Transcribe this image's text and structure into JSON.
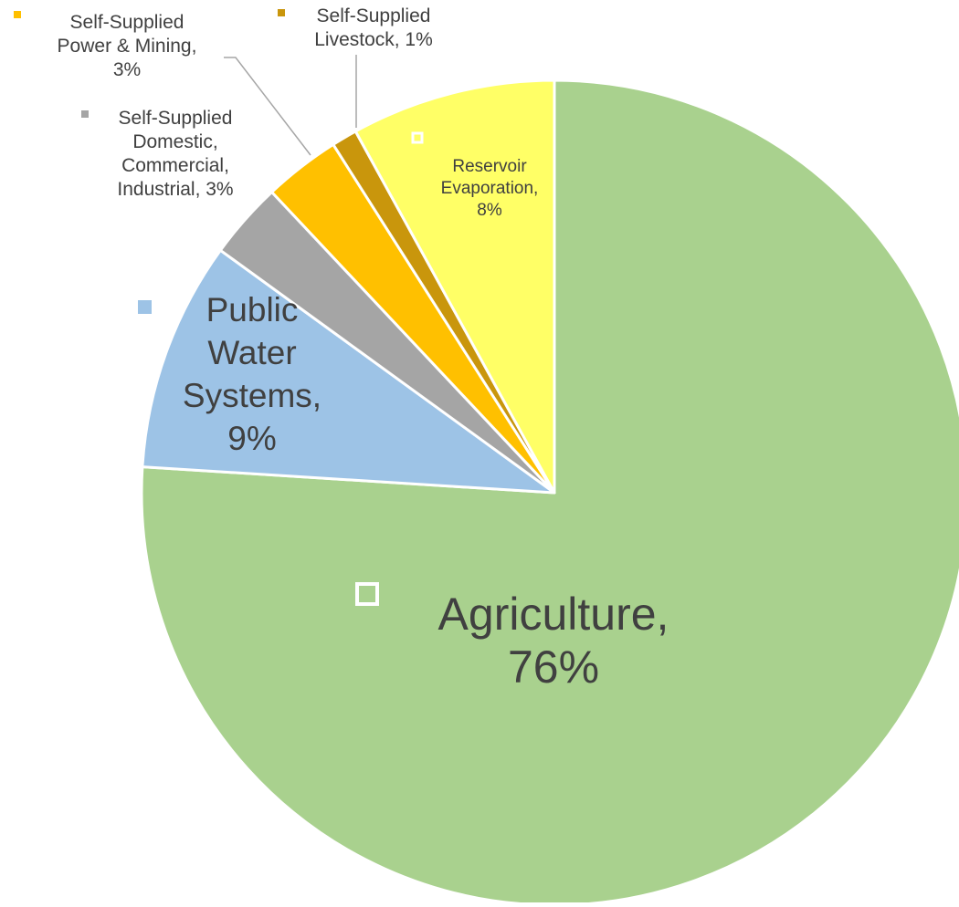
{
  "chart_data": {
    "type": "pie",
    "title": "",
    "slices": [
      {
        "label": "Agriculture",
        "value": 76,
        "display": "76%",
        "color": "#A9D18E",
        "label_lines": [
          "Agriculture,",
          "76%"
        ],
        "label_color": "#404040"
      },
      {
        "label": "Public Water Systems",
        "value": 9,
        "display": "9%",
        "color": "#9DC3E6",
        "label_lines": [
          "Public",
          "Water",
          "Systems,",
          "9%"
        ],
        "label_color": "#404040"
      },
      {
        "label": "Self-Supplied Domestic, Commercial, Industrial",
        "value": 3,
        "display": "3%",
        "color": "#A5A5A5",
        "label_lines": [
          "Self-Supplied",
          "Domestic,",
          "Commercial,",
          "Industrial, 3%"
        ],
        "label_color": "#404040"
      },
      {
        "label": "Self-Supplied Power & Mining",
        "value": 3,
        "display": "3%",
        "color": "#FFC000",
        "label_lines": [
          "Self-Supplied",
          "Power & Mining,",
          "3%"
        ],
        "label_color": "#404040"
      },
      {
        "label": "Self-Supplied Livestock",
        "value": 1,
        "display": "1%",
        "color": "#C9960C",
        "label_lines": [
          "Self-Supplied",
          "Livestock, 1%"
        ],
        "label_color": "#404040"
      },
      {
        "label": "Reservoir Evaporation",
        "value": 8,
        "display": "8%",
        "color": "#FFFF66",
        "label_lines": [
          "Reservoir",
          "Evaporation,",
          "8%"
        ],
        "label_color": "#404040"
      }
    ],
    "legend": "none (data labels with leader lines)",
    "start_angle_deg": 0,
    "direction": "clockwise"
  }
}
